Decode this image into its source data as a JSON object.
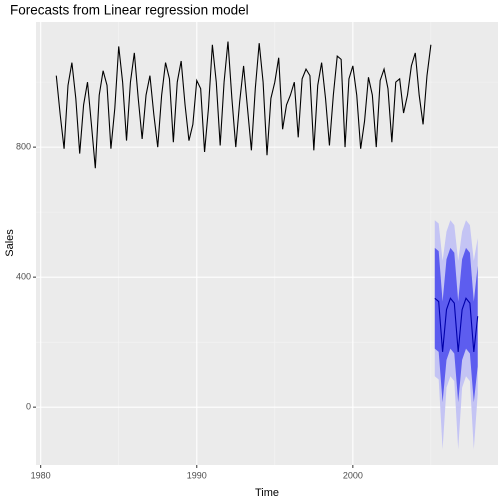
{
  "chart_data": {
    "type": "line",
    "title": "Forecasts from Linear regression model",
    "xlabel": "Time",
    "ylabel": "Sales",
    "xlim": [
      1979.7,
      2009.3
    ],
    "ylim": [
      -178,
      1185
    ],
    "xticks": [
      1980,
      1990,
      2000
    ],
    "yticks": [
      0,
      400,
      800
    ],
    "x_minor_grid": [
      1985,
      1995,
      2005
    ],
    "y_minor_grid": [
      200,
      600,
      1000
    ],
    "grid": true,
    "color": "#000000",
    "x": [
      1981,
      1981.25,
      1981.5,
      1981.75,
      1982,
      1982.25,
      1982.5,
      1982.75,
      1983,
      1983.25,
      1983.5,
      1983.75,
      1984,
      1984.25,
      1984.5,
      1984.75,
      1985,
      1985.25,
      1985.5,
      1985.75,
      1986,
      1986.25,
      1986.5,
      1986.75,
      1987,
      1987.25,
      1987.5,
      1987.75,
      1988,
      1988.25,
      1988.5,
      1988.75,
      1989,
      1989.25,
      1989.5,
      1989.75,
      1990,
      1990.25,
      1990.5,
      1990.75,
      1991,
      1991.25,
      1991.5,
      1991.75,
      1992,
      1992.25,
      1992.5,
      1992.75,
      1993,
      1993.25,
      1993.5,
      1993.75,
      1994,
      1994.25,
      1994.5,
      1994.75,
      1995,
      1995.25,
      1995.5,
      1995.75,
      1996,
      1996.25,
      1996.5,
      1996.75,
      1997,
      1997.25,
      1997.5,
      1997.75,
      1998,
      1998.25,
      1998.5,
      1998.75,
      1999,
      1999.25,
      1999.5,
      1999.75,
      2000,
      2000.25,
      2000.5,
      2000.75,
      2001,
      2001.25,
      2001.5,
      2001.75,
      2002,
      2002.25,
      2002.5,
      2002.75,
      2003,
      2003.25,
      2003.5,
      2003.75,
      2004,
      2004.25,
      2004.5,
      2004.75,
      2005
    ],
    "values": [
      1020,
      900,
      795,
      990,
      1060,
      950,
      780,
      930,
      1000,
      870,
      735,
      960,
      1035,
      990,
      795,
      920,
      1110,
      1000,
      820,
      1000,
      1090,
      950,
      825,
      960,
      1020,
      900,
      800,
      960,
      1060,
      1010,
      815,
      1000,
      1065,
      930,
      820,
      870,
      1005,
      980,
      785,
      920,
      1115,
      1000,
      805,
      1000,
      1125,
      950,
      800,
      940,
      1050,
      920,
      790,
      980,
      1120,
      1000,
      775,
      950,
      1000,
      1075,
      855,
      930,
      960,
      1000,
      830,
      1010,
      1040,
      1020,
      790,
      990,
      1060,
      950,
      805,
      960,
      1080,
      1070,
      800,
      1010,
      1050,
      960,
      795,
      880,
      1015,
      960,
      800,
      1005,
      1040,
      980,
      815,
      1000,
      1010,
      905,
      960,
      1050,
      1090,
      960,
      870,
      1020,
      1115
    ],
    "forecast": {
      "color": "#0000aa",
      "color80": "#5d5def",
      "color95": "#c4c4f4",
      "x": [
        2005.25,
        2005.5,
        2005.75,
        2006,
        2006.25,
        2006.5,
        2006.75,
        2007,
        2007.25,
        2007.5,
        2007.75,
        2008
      ],
      "mean": [
        335,
        325,
        170,
        300,
        335,
        320,
        170,
        300,
        335,
        320,
        170,
        280
      ],
      "lo80": [
        180,
        170,
        15,
        145,
        180,
        165,
        15,
        145,
        180,
        165,
        15,
        125
      ],
      "hi80": [
        490,
        480,
        325,
        455,
        490,
        475,
        325,
        455,
        490,
        475,
        325,
        435
      ],
      "lo95": [
        95,
        85,
        -130,
        60,
        95,
        80,
        -130,
        60,
        95,
        80,
        -130,
        40
      ],
      "hi95": [
        575,
        565,
        450,
        540,
        575,
        560,
        450,
        540,
        575,
        560,
        450,
        520
      ]
    }
  }
}
